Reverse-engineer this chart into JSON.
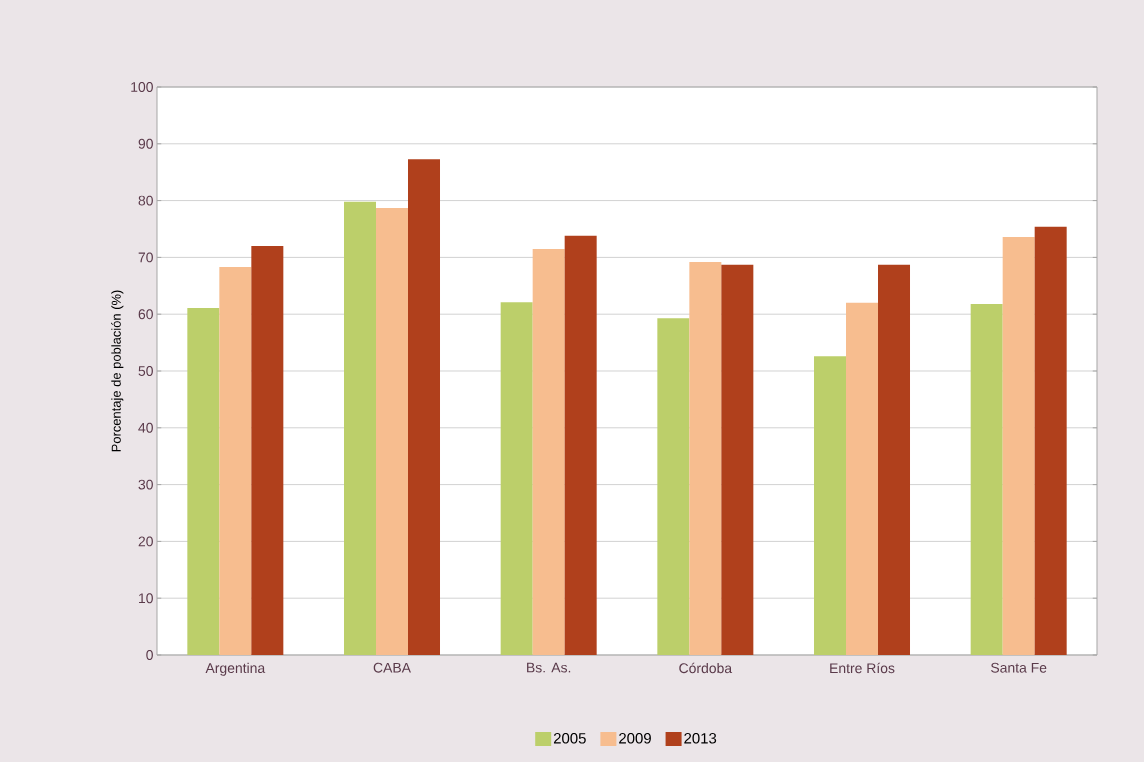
{
  "chart_data": {
    "type": "bar",
    "ylabel": "Porcentaje de población (%)",
    "categories": [
      "Argentina",
      "CABA",
      "Bs. As.",
      "Córdoba",
      "Entre Ríos",
      "Santa Fe"
    ],
    "series": [
      {
        "name": "2005",
        "color": "#bccf6a",
        "values": [
          61.1,
          79.8,
          62.1,
          59.3,
          52.6,
          61.8
        ]
      },
      {
        "name": "2009",
        "color": "#f7bd8f",
        "values": [
          68.3,
          78.7,
          71.5,
          69.2,
          62.0,
          73.6
        ]
      },
      {
        "name": "2013",
        "color": "#b0401c",
        "values": [
          72.0,
          87.3,
          73.8,
          68.7,
          68.7,
          75.4
        ]
      }
    ],
    "ylim": [
      0,
      100
    ],
    "yticks": [
      0,
      10,
      20,
      30,
      40,
      50,
      60,
      70,
      80,
      90,
      100
    ],
    "grid": "y",
    "legend": "bottom"
  }
}
